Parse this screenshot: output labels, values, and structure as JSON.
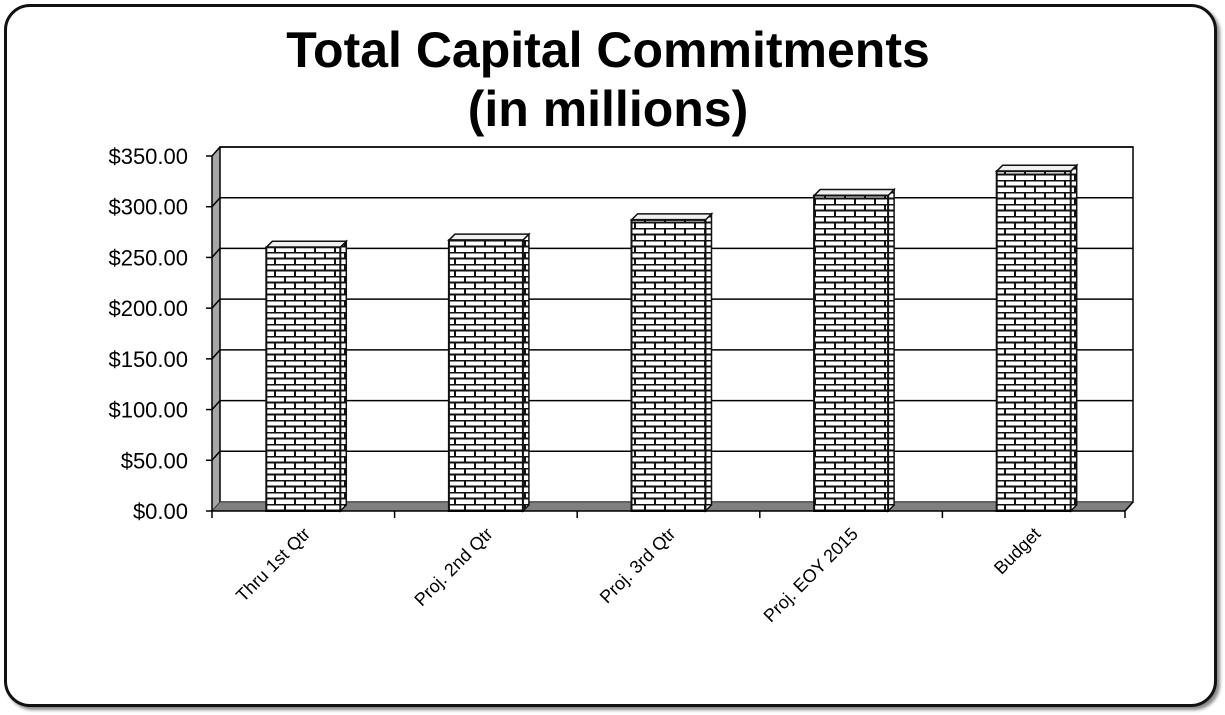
{
  "chart_data": {
    "type": "bar",
    "title": [
      "Total Capital Commitments",
      "(in millions)"
    ],
    "categories": [
      "Thru 1st Qtr",
      "Proj. 2nd Qtr",
      "Proj. 3rd Qtr",
      "Proj. EOY 2015",
      "Budget"
    ],
    "values": [
      260,
      267,
      287,
      311,
      335
    ],
    "ylim": [
      0,
      350
    ],
    "yticks": [
      0,
      50,
      100,
      150,
      200,
      250,
      300,
      350
    ],
    "ytick_labels": [
      "$0.00",
      "$50.00",
      "$100.00",
      "$150.00",
      "$200.00",
      "$250.00",
      "$300.00",
      "$350.00"
    ],
    "grid": true,
    "bar_pattern": "brick",
    "colors": {
      "bar_fill": "#ffffff",
      "bar_line": "#111111",
      "gridline": "#000000",
      "floor": "#808080",
      "wall_side": "#a6a6a6"
    }
  }
}
